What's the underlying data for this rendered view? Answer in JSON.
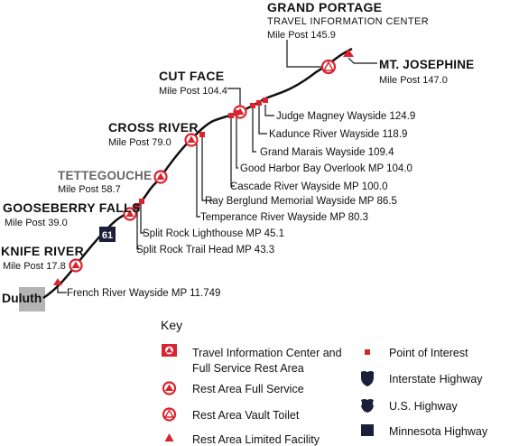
{
  "cities": {
    "grand_portage": {
      "name": "GRAND PORTAGE",
      "sub": "TRAVEL INFORMATION CENTER",
      "mp": "Mile Post 145.9"
    },
    "mt_josephine": {
      "name": "MT. JOSEPHINE",
      "mp": "Mile Post 147.0"
    },
    "cut_face": {
      "name": "CUT FACE",
      "mp": "Mile Post 104.4"
    },
    "cross_river": {
      "name": "CROSS RIVER",
      "mp": "Mile Post 79.0"
    },
    "tettegouche": {
      "name": "TETTEGOUCHE",
      "mp": "Mile Post 58.7"
    },
    "gooseberry": {
      "name": "GOOSEBERRY FALLS",
      "mp": "Mile Post 39.0"
    },
    "knife_river": {
      "name": "KNIFE RIVER",
      "mp": "Mile Post 17.8"
    },
    "duluth": {
      "name": "Duluth"
    }
  },
  "highway_shield": "61",
  "waysides": {
    "judge_magney": "Judge Magney Wayside 124.9",
    "kadunce": "Kadunce River Wayside 118.9",
    "grand_marais": "Grand Marais Wayside 109.4",
    "good_harbor": "Good Harbor Bay Overlook MP 104.0",
    "cascade": "Cascade River Wayside MP 100.0",
    "ray_berglund": "Ray Berglund Memorial Wayside MP 86.5",
    "temperance": "Temperance River Wayside MP 80.3",
    "split_rock_lighthouse": "Split Rock Lighthouse MP 45.1",
    "split_rock_trail": "Split Rock Trail Head MP 43.3",
    "french_river": "French River Wayside MP 11.749"
  },
  "key": {
    "title": "Key",
    "items": [
      {
        "icon": "travel-info-center-icon",
        "label": "Travel Information Center and",
        "label2": "Full Service Rest Area"
      },
      {
        "icon": "rest-area-full-service-icon",
        "label": "Rest Area Full Service"
      },
      {
        "icon": "rest-area-vault-toilet-icon",
        "label": "Rest Area Vault Toilet"
      },
      {
        "icon": "rest-area-limited-icon",
        "label": "Rest Area Limited Facility"
      },
      {
        "icon": "point-of-interest-icon",
        "label": "Point of Interest"
      },
      {
        "icon": "interstate-shield-icon",
        "label": "Interstate Highway"
      },
      {
        "icon": "us-highway-shield-icon",
        "label": "U.S. Highway"
      },
      {
        "icon": "minnesota-highway-icon",
        "label": "Minnesota Highway"
      }
    ]
  },
  "colors": {
    "route": "#111111",
    "rest_area": "#d9232e",
    "duluth_box": "#b3b3b3",
    "shield": "#1b1f3a"
  }
}
